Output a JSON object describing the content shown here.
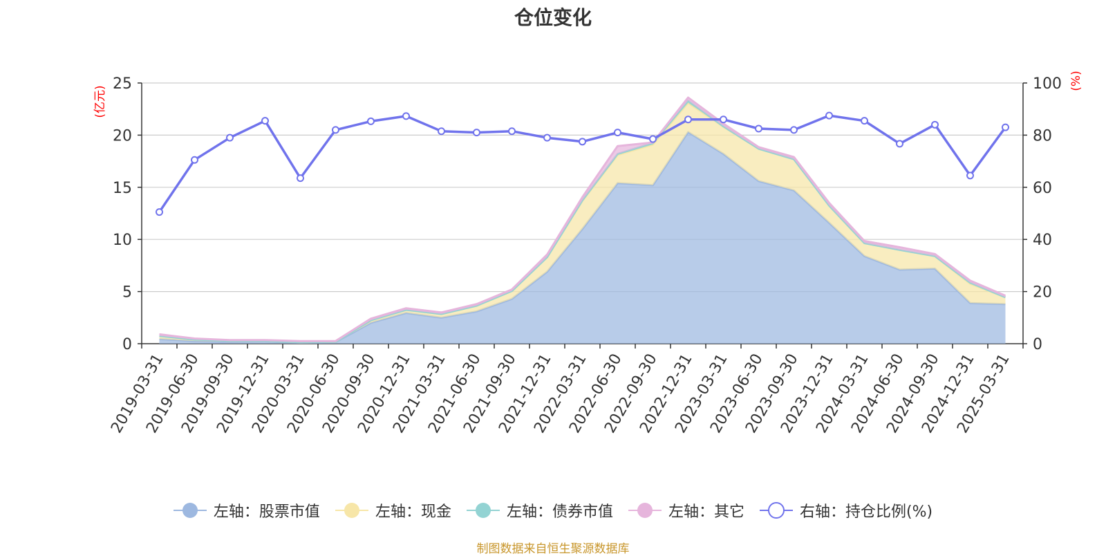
{
  "chart_data": {
    "type": "area",
    "title": "仓位变化",
    "source": "制图数据来自恒生聚源数据库",
    "y_left": {
      "unit": "(亿元)",
      "ylim": [
        0,
        25
      ],
      "ticks": [
        "0",
        "5",
        "10",
        "15",
        "20",
        "25"
      ]
    },
    "y_right": {
      "unit": "(%)",
      "ylim": [
        0,
        100
      ],
      "ticks": [
        "0",
        "20",
        "40",
        "60",
        "80",
        "100"
      ]
    },
    "categories": [
      "2019-03-31",
      "2019-06-30",
      "2019-09-30",
      "2019-12-31",
      "2020-03-31",
      "2020-06-30",
      "2020-09-30",
      "2020-12-31",
      "2021-03-31",
      "2021-06-30",
      "2021-09-30",
      "2021-12-31",
      "2022-03-31",
      "2022-06-30",
      "2022-09-30",
      "2022-12-31",
      "2023-03-31",
      "2023-06-30",
      "2023-09-30",
      "2023-12-31",
      "2024-03-31",
      "2024-06-30",
      "2024-09-30",
      "2024-12-31",
      "2025-03-31"
    ],
    "series": [
      {
        "name": "左轴：股票市值",
        "axis": "left",
        "kind": "stacked-area",
        "color": "#9db8e0",
        "values": [
          0.45,
          0.25,
          0.18,
          0.22,
          0.1,
          0.15,
          2.0,
          2.95,
          2.5,
          3.1,
          4.3,
          6.9,
          11.0,
          15.4,
          15.2,
          20.3,
          18.2,
          15.6,
          14.7,
          11.6,
          8.4,
          7.1,
          7.2,
          3.9,
          3.8
        ]
      },
      {
        "name": "左轴：现金",
        "axis": "left",
        "kind": "stacked-area",
        "color": "#f7e6a8",
        "values": [
          0.3,
          0.15,
          0.1,
          0.05,
          0.05,
          0.03,
          0.25,
          0.3,
          0.35,
          0.55,
          0.75,
          1.4,
          2.7,
          2.7,
          3.9,
          2.8,
          2.6,
          3.1,
          3.0,
          1.65,
          1.25,
          1.9,
          1.2,
          1.85,
          0.65
        ]
      },
      {
        "name": "左轴：债券市值",
        "axis": "left",
        "kind": "stacked-area",
        "color": "#93d3d3",
        "values": [
          0,
          0,
          0,
          0,
          0,
          0,
          0,
          0,
          0,
          0,
          0,
          0,
          0.05,
          0.1,
          0.15,
          0.2,
          0.05,
          0,
          0,
          0,
          0,
          0,
          0,
          0.1,
          0
        ]
      },
      {
        "name": "左轴：其它",
        "axis": "left",
        "kind": "stacked-area",
        "color": "#e6b5dc",
        "values": [
          0.15,
          0.1,
          0.07,
          0.08,
          0.1,
          0.07,
          0.15,
          0.15,
          0.15,
          0.15,
          0.15,
          0.25,
          0.3,
          0.75,
          0.05,
          0.3,
          0.25,
          0.15,
          0.2,
          0.25,
          0.2,
          0.25,
          0.2,
          0.2,
          0.15
        ]
      },
      {
        "name": "右轴：持仓比例(%)",
        "axis": "right",
        "kind": "line",
        "color": "#7073ec",
        "values": [
          50.5,
          70.5,
          79,
          85.5,
          63.5,
          82,
          85.3,
          87.3,
          81.5,
          81,
          81.5,
          79,
          77.5,
          81,
          78.5,
          86,
          86,
          82.5,
          82,
          87.5,
          85.5,
          76.7,
          84,
          64.5,
          83
        ]
      }
    ]
  }
}
